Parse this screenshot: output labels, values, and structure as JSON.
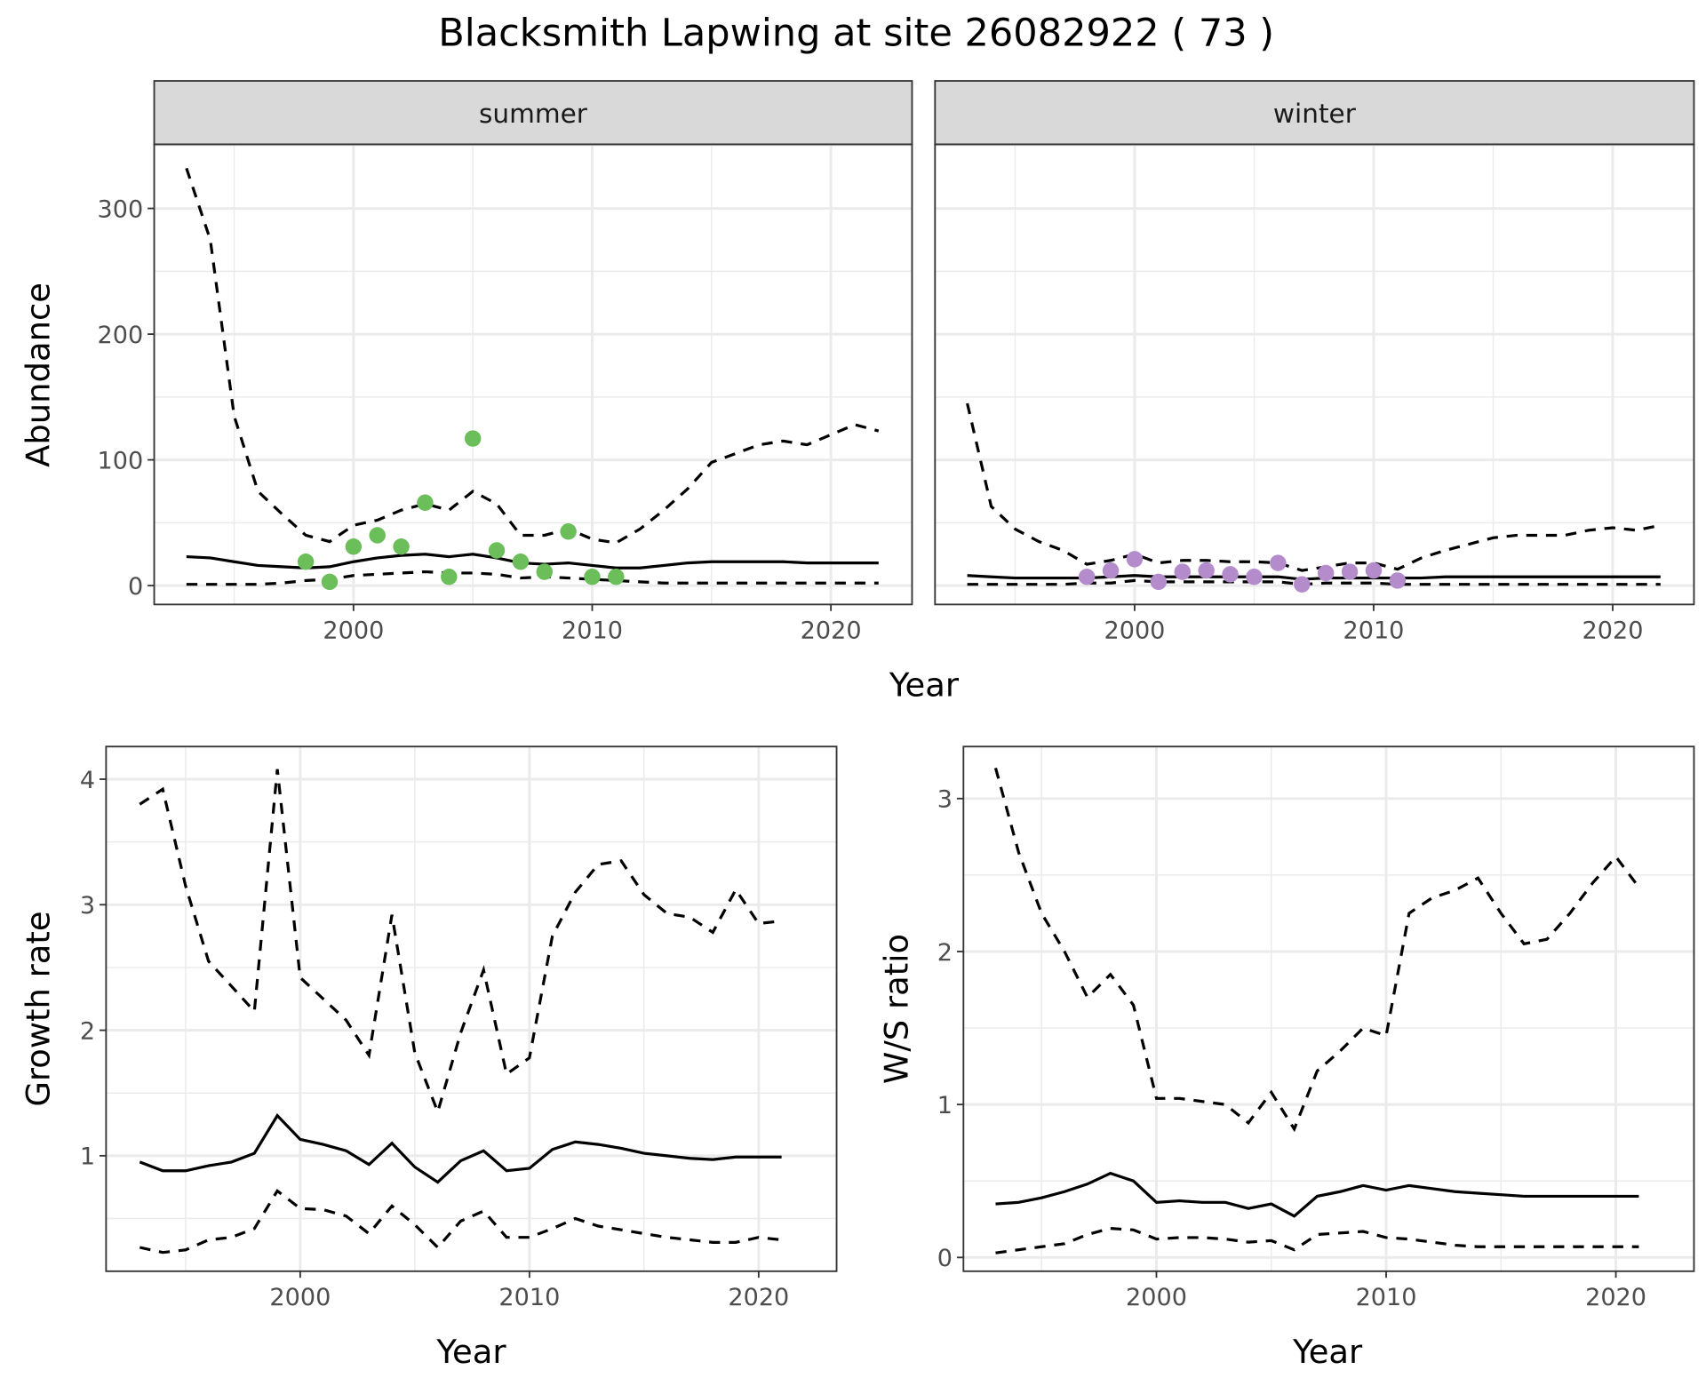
{
  "title": "Blacksmith Lapwing at site 26082922 ( 73 )",
  "colors": {
    "summer_points": "#6BBE5A",
    "winter_points": "#B48CCB",
    "lines": "#000000",
    "strip_bg": "#D9D9D9",
    "grid": "#EBEBEB"
  },
  "chart_data": [
    {
      "type": "line",
      "panel": "abundance",
      "facets": [
        "summer",
        "winter"
      ],
      "xlabel": "Year",
      "ylabel": "Abundance",
      "xlim": [
        1991.65,
        2023.4
      ],
      "ylim": [
        -15,
        351
      ],
      "xticks": [
        2000,
        2010,
        2020
      ],
      "yticks": [
        0,
        100,
        200,
        300
      ],
      "grid": true,
      "years": [
        1993,
        1994,
        1995,
        1996,
        1997,
        1998,
        1999,
        2000,
        2001,
        2002,
        2003,
        2004,
        2005,
        2006,
        2007,
        2008,
        2009,
        2010,
        2011,
        2012,
        2013,
        2014,
        2015,
        2016,
        2017,
        2018,
        2019,
        2020,
        2021,
        2022
      ],
      "summer": {
        "mean": [
          23,
          22,
          19,
          16,
          15,
          14,
          15,
          19,
          22,
          24,
          25,
          23,
          25,
          22,
          18,
          17,
          18,
          16,
          14,
          14,
          16,
          18,
          19,
          19,
          19,
          19,
          18,
          18,
          18,
          18
        ],
        "upper": [
          332,
          275,
          135,
          75,
          57,
          40,
          35,
          48,
          52,
          60,
          65,
          60,
          75,
          65,
          40,
          40,
          45,
          37,
          34,
          45,
          60,
          77,
          98,
          105,
          112,
          115,
          112,
          120,
          128,
          123
        ],
        "lower": [
          1,
          1,
          1,
          1,
          2,
          4,
          5,
          8,
          9,
          10,
          11,
          10,
          10,
          9,
          6,
          7,
          6,
          5,
          4,
          3,
          2,
          2,
          2,
          2,
          2,
          2,
          2,
          2,
          2,
          2
        ],
        "points_x": [
          1998,
          1999,
          2000,
          2001,
          2002,
          2003,
          2004,
          2005,
          2006,
          2007,
          2008,
          2009,
          2010,
          2011
        ],
        "points_y": [
          19,
          3,
          31,
          40,
          31,
          66,
          7,
          117,
          28,
          19,
          11,
          43,
          7,
          7
        ]
      },
      "winter": {
        "mean": [
          8,
          7,
          6,
          6,
          6,
          6,
          7,
          8,
          7,
          7,
          7,
          7,
          7,
          7,
          5,
          6,
          6,
          6,
          6,
          6,
          7,
          7,
          7,
          7,
          7,
          7,
          7,
          7,
          7,
          7
        ],
        "upper": [
          145,
          63,
          45,
          35,
          28,
          17,
          20,
          25,
          18,
          20,
          20,
          19,
          19,
          18,
          12,
          15,
          18,
          18,
          13,
          22,
          28,
          33,
          38,
          40,
          40,
          40,
          44,
          46,
          44,
          48
        ],
        "lower": [
          1,
          1,
          1,
          1,
          1,
          2,
          2,
          4,
          3,
          3,
          3,
          3,
          3,
          3,
          1,
          2,
          2,
          2,
          1,
          1,
          1,
          1,
          1,
          1,
          1,
          1,
          1,
          1,
          1,
          1
        ],
        "points_x": [
          1998,
          1999,
          2000,
          2001,
          2002,
          2003,
          2004,
          2005,
          2006,
          2007,
          2008,
          2009,
          2010,
          2011
        ],
        "points_y": [
          7,
          12,
          21,
          3,
          11,
          12,
          9,
          7,
          18,
          1,
          10,
          11,
          12,
          4
        ]
      }
    },
    {
      "type": "line",
      "panel": "growth",
      "xlabel": "Year",
      "ylabel": "Growth rate",
      "xlim": [
        1991.53,
        2023.4
      ],
      "ylim": [
        0.08,
        4.26
      ],
      "xticks": [
        2000,
        2010,
        2020
      ],
      "yticks": [
        1,
        2,
        3,
        4
      ],
      "grid": true,
      "years": [
        1993,
        1994,
        1995,
        1996,
        1997,
        1998,
        1999,
        2000,
        2001,
        2002,
        2003,
        2004,
        2005,
        2006,
        2007,
        2008,
        2009,
        2010,
        2011,
        2012,
        2013,
        2014,
        2015,
        2016,
        2017,
        2018,
        2019,
        2020,
        2021
      ],
      "mean": [
        0.95,
        0.88,
        0.88,
        0.92,
        0.95,
        1.02,
        1.32,
        1.13,
        1.09,
        1.04,
        0.93,
        1.1,
        0.91,
        0.79,
        0.96,
        1.04,
        0.88,
        0.9,
        1.05,
        1.11,
        1.09,
        1.06,
        1.02,
        1.0,
        0.98,
        0.97,
        0.99,
        0.99,
        0.99
      ],
      "upper": [
        3.8,
        3.92,
        3.15,
        2.55,
        2.35,
        2.15,
        4.08,
        2.42,
        2.25,
        2.08,
        1.8,
        2.92,
        1.82,
        1.35,
        1.98,
        2.48,
        1.65,
        1.78,
        2.75,
        3.1,
        3.32,
        3.35,
        3.08,
        2.93,
        2.9,
        2.78,
        3.12,
        2.85,
        2.87
      ],
      "lower": [
        0.27,
        0.23,
        0.25,
        0.33,
        0.35,
        0.42,
        0.72,
        0.58,
        0.57,
        0.52,
        0.38,
        0.6,
        0.45,
        0.27,
        0.48,
        0.56,
        0.35,
        0.35,
        0.42,
        0.5,
        0.44,
        0.41,
        0.38,
        0.35,
        0.33,
        0.31,
        0.31,
        0.35,
        0.33
      ]
    },
    {
      "type": "line",
      "panel": "ws_ratio",
      "xlabel": "Year",
      "ylabel": "W/S ratio",
      "xlim": [
        1991.6,
        2023.4
      ],
      "ylim": [
        -0.09,
        3.34
      ],
      "xticks": [
        2000,
        2010,
        2020
      ],
      "yticks": [
        0,
        1,
        2,
        3
      ],
      "grid": true,
      "years": [
        1993,
        1994,
        1995,
        1996,
        1997,
        1998,
        1999,
        2000,
        2001,
        2002,
        2003,
        2004,
        2005,
        2006,
        2007,
        2008,
        2009,
        2010,
        2011,
        2012,
        2013,
        2014,
        2015,
        2016,
        2017,
        2018,
        2019,
        2020,
        2021
      ],
      "mean": [
        0.35,
        0.36,
        0.39,
        0.43,
        0.48,
        0.55,
        0.5,
        0.36,
        0.37,
        0.36,
        0.36,
        0.32,
        0.35,
        0.27,
        0.4,
        0.43,
        0.47,
        0.44,
        0.47,
        0.45,
        0.43,
        0.42,
        0.41,
        0.4,
        0.4,
        0.4,
        0.4,
        0.4,
        0.4
      ],
      "upper": [
        3.2,
        2.65,
        2.25,
        2.0,
        1.7,
        1.85,
        1.65,
        1.04,
        1.04,
        1.02,
        1.0,
        0.88,
        1.08,
        0.84,
        1.22,
        1.35,
        1.5,
        1.45,
        2.25,
        2.35,
        2.4,
        2.48,
        2.25,
        2.05,
        2.08,
        2.25,
        2.45,
        2.62,
        2.42
      ],
      "lower": [
        0.03,
        0.05,
        0.07,
        0.09,
        0.15,
        0.19,
        0.18,
        0.12,
        0.13,
        0.13,
        0.12,
        0.1,
        0.11,
        0.05,
        0.15,
        0.16,
        0.17,
        0.13,
        0.12,
        0.1,
        0.08,
        0.07,
        0.07,
        0.07,
        0.07,
        0.07,
        0.07,
        0.07,
        0.07
      ]
    }
  ]
}
